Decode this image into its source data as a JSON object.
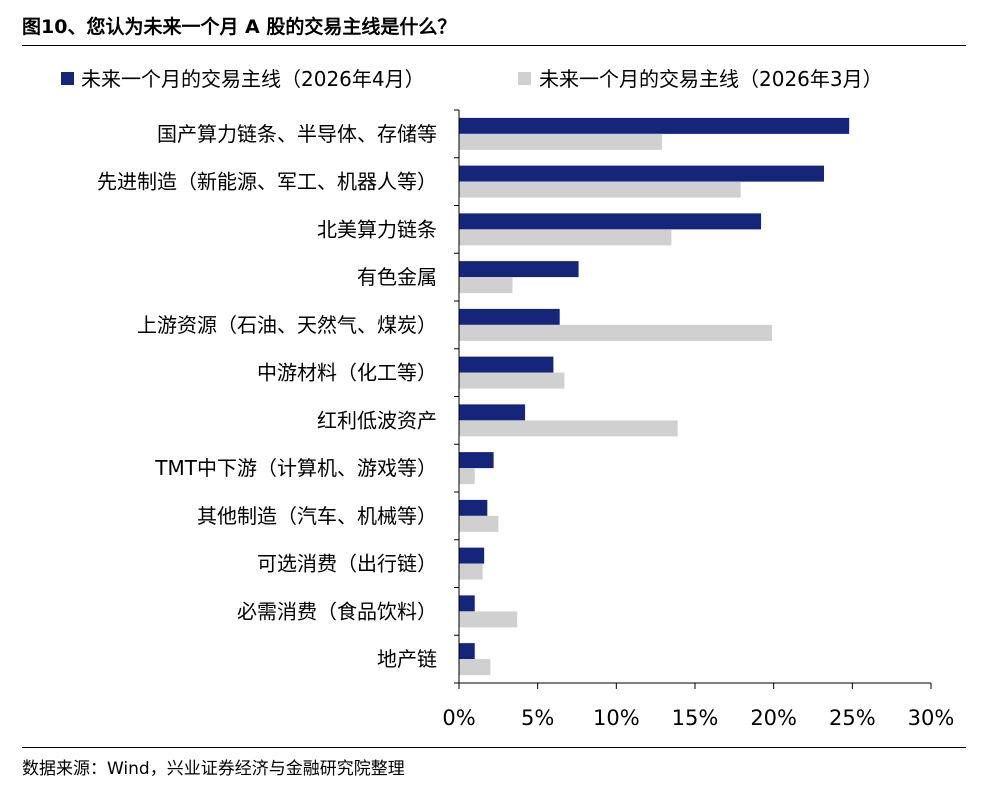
{
  "page": {
    "title": "图10、您认为未来一个月 A 股的交易主线是什么？",
    "source": "数据来源：Wind，兴业证券经济与金融研究院整理"
  },
  "colors": {
    "apr": "#14257a",
    "mar": "#d0d0d0",
    "axis": "#000000"
  },
  "chart_data": {
    "type": "bar",
    "orientation": "horizontal",
    "title": "图10、您认为未来一个月 A 股的交易主线是什么？",
    "xlabel": "",
    "ylabel": "",
    "xlim": [
      0,
      0.3
    ],
    "x_ticks": [
      0,
      0.05,
      0.1,
      0.15,
      0.2,
      0.25,
      0.3
    ],
    "x_tick_labels": [
      "0%",
      "5%",
      "10%",
      "15%",
      "20%",
      "25%",
      "30%"
    ],
    "grid": false,
    "legend": "top",
    "categories": [
      "国产算力链条、半导体、存储等",
      "先进制造（新能源、军工、机器人等）",
      "北美算力链条",
      "有色金属",
      "上游资源（石油、天然气、煤炭）",
      "中游材料（化工等）",
      "红利低波资产",
      "TMT中下游（计算机、游戏等）",
      "其他制造（汽车、机械等）",
      "可选消费（出行链）",
      "必需消费（食品饮料）",
      "地产链"
    ],
    "series": [
      {
        "name": "未来一个月的交易主线（2026年4月）",
        "values": [
          0.248,
          0.232,
          0.192,
          0.076,
          0.064,
          0.06,
          0.042,
          0.022,
          0.018,
          0.016,
          0.01,
          0.01
        ]
      },
      {
        "name": "未来一个月的交易主线（2026年3月）",
        "values": [
          0.129,
          0.179,
          0.135,
          0.034,
          0.199,
          0.067,
          0.139,
          0.01,
          0.025,
          0.015,
          0.037,
          0.02
        ]
      }
    ]
  }
}
